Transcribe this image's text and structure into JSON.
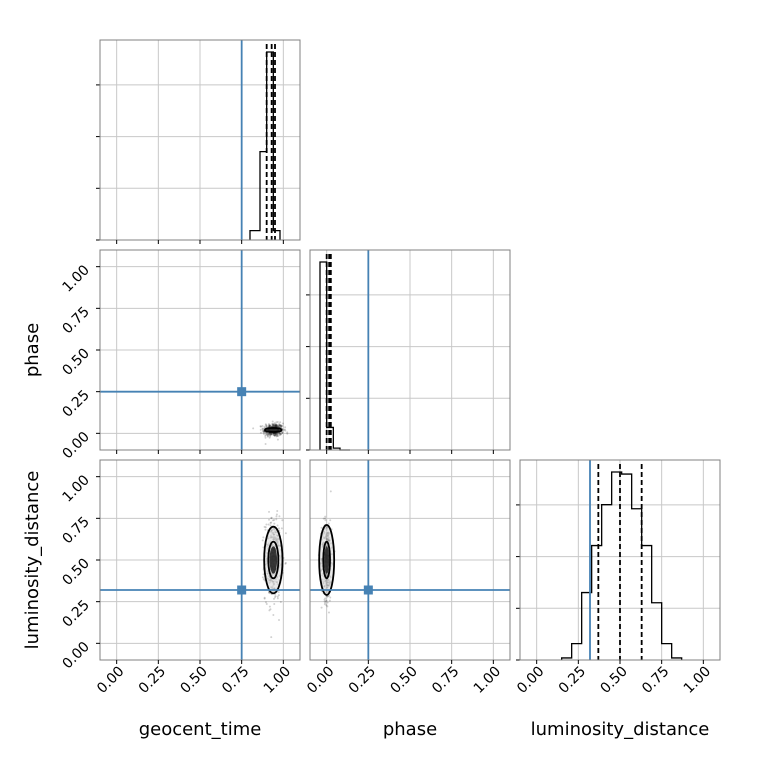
{
  "chart_data": {
    "type": "corner",
    "parameters": [
      "geocent_time",
      "phase",
      "luminosity_distance"
    ],
    "xlim": [
      -0.1,
      1.1
    ],
    "ticks": [
      "0.00",
      "0.25",
      "0.50",
      "0.75",
      "1.00"
    ],
    "tick_values": [
      0.0,
      0.25,
      0.5,
      0.75,
      1.0
    ],
    "grid": true,
    "colors": {
      "truth": "#4682b4",
      "hist": "#000000",
      "grid": "#c8c8c8",
      "frame": "#808080"
    },
    "truths": {
      "geocent_time": 0.75,
      "phase": 0.25,
      "luminosity_distance": 0.32
    },
    "diagonal": [
      {
        "param": "geocent_time",
        "hist_edges": [
          0.8,
          0.86,
          0.9,
          0.94,
          0.98
        ],
        "hist_counts": [
          0.05,
          0.47,
          1.0,
          0.05
        ],
        "quantiles": [
          0.9,
          0.93,
          0.95
        ]
      },
      {
        "param": "phase",
        "hist_edges": [
          -0.04,
          0.0,
          0.04,
          0.08,
          0.14
        ],
        "hist_counts": [
          1.0,
          0.12,
          0.01,
          0.0
        ],
        "quantiles": [
          0.0,
          0.015,
          0.025
        ]
      },
      {
        "param": "luminosity_distance",
        "hist_edges": [
          0.15,
          0.21,
          0.27,
          0.33,
          0.39,
          0.45,
          0.51,
          0.57,
          0.63,
          0.69,
          0.75,
          0.81,
          0.87
        ],
        "hist_counts": [
          0.01,
          0.08,
          0.33,
          0.56,
          0.76,
          0.92,
          0.91,
          0.74,
          0.56,
          0.28,
          0.08,
          0.01
        ],
        "quantiles": [
          0.37,
          0.5,
          0.63
        ]
      }
    ],
    "panels_2d": [
      {
        "x": "geocent_time",
        "y": "phase",
        "center": [
          0.94,
          0.02
        ],
        "spread": [
          0.03,
          0.02
        ],
        "contours": [
          {
            "rx": 0.05,
            "ry": 0.012
          }
        ]
      },
      {
        "x": "geocent_time",
        "y": "luminosity_distance",
        "center": [
          0.94,
          0.5
        ],
        "spread": [
          0.025,
          0.12
        ],
        "contours": [
          {
            "rx": 0.03,
            "ry": 0.11
          },
          {
            "rx": 0.055,
            "ry": 0.2
          }
        ]
      },
      {
        "x": "phase",
        "y": "luminosity_distance",
        "center": [
          0.0,
          0.5
        ],
        "spread": [
          0.015,
          0.12
        ],
        "contours": [
          {
            "rx": 0.02,
            "ry": 0.11
          },
          {
            "rx": 0.045,
            "ry": 0.21
          }
        ]
      }
    ]
  }
}
